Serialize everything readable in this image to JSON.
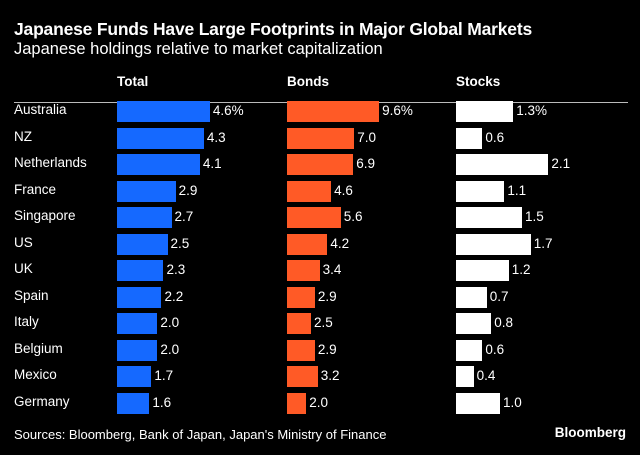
{
  "title": "Japanese Funds Have Large Footprints in Major Global Markets",
  "subtitle": "Japanese holdings relative to market capitalization",
  "source": "Sources: Bloomberg, Bank of Japan, Japan's Ministry of Finance",
  "logo": "Bloomberg",
  "chart_data": {
    "type": "bar",
    "orientation": "horizontal",
    "unit": "%",
    "categories": [
      "Australia",
      "NZ",
      "Netherlands",
      "France",
      "Singapore",
      "US",
      "UK",
      "Spain",
      "Italy",
      "Belgium",
      "Mexico",
      "Germany"
    ],
    "series": [
      {
        "name": "Total",
        "color": "#1569ff",
        "values": [
          4.6,
          4.3,
          4.1,
          2.9,
          2.7,
          2.5,
          2.3,
          2.2,
          2.0,
          2.0,
          1.7,
          1.6
        ],
        "labels": [
          "4.6%",
          "4.3",
          "4.1",
          "2.9",
          "2.7",
          "2.5",
          "2.3",
          "2.2",
          "2.0",
          "2.0",
          "1.7",
          "1.6"
        ]
      },
      {
        "name": "Bonds",
        "color": "#ff5a26",
        "values": [
          9.6,
          7.0,
          6.9,
          4.6,
          5.6,
          4.2,
          3.4,
          2.9,
          2.5,
          2.9,
          3.2,
          2.0
        ],
        "labels": [
          "9.6%",
          "7.0",
          "6.9",
          "4.6",
          "5.6",
          "4.2",
          "3.4",
          "2.9",
          "2.5",
          "2.9",
          "3.2",
          "2.0"
        ]
      },
      {
        "name": "Stocks",
        "color": "#ffffff",
        "values": [
          1.3,
          0.6,
          2.1,
          1.1,
          1.5,
          1.7,
          1.2,
          0.7,
          0.8,
          0.6,
          0.4,
          1.0
        ],
        "labels": [
          "1.3%",
          "0.6",
          "2.1",
          "1.1",
          "1.5",
          "1.7",
          "1.2",
          "0.7",
          "0.8",
          "0.6",
          "0.4",
          "1.0"
        ]
      }
    ],
    "grid": false,
    "legend": "column-headers"
  }
}
